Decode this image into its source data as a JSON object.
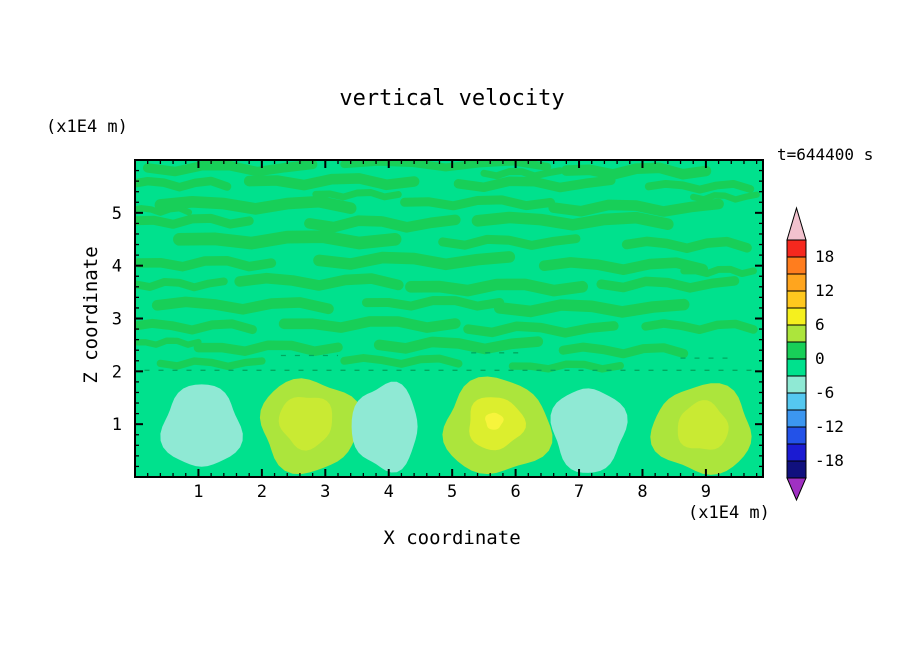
{
  "title": "vertical velocity",
  "time_label": "t=644400 s",
  "axes": {
    "x_label": "X coordinate",
    "x_unit": "(x1E4 m)",
    "y_label": "Z coordinate",
    "y_unit": "(x1E4 m)",
    "x_ticks": [
      1,
      2,
      3,
      4,
      5,
      6,
      7,
      8,
      9
    ],
    "y_ticks": [
      1,
      2,
      3,
      4,
      5
    ],
    "x_range": [
      0,
      9.9
    ],
    "y_range": [
      0,
      6
    ]
  },
  "colorbar": {
    "tick_labels": [
      "18",
      "12",
      "6",
      "0",
      "-6",
      "-12",
      "-18"
    ],
    "top_arrow_color": "#F2C2CE",
    "bottom_arrow_color": "#A030C2",
    "bands_top_to_bottom": [
      "#F5281E",
      "#FF7D1E",
      "#FFA51E",
      "#FFC81E",
      "#F5F01E",
      "#ACE53C",
      "#18CF58",
      "#00E18D",
      "#8FE9D4",
      "#55C8F0",
      "#3C96F0",
      "#2352E8",
      "#1B1BD2",
      "#10107E"
    ]
  },
  "chart_data": {
    "type": "heatmap",
    "subtype": "filled-contour",
    "title": "vertical velocity",
    "xlabel": "X coordinate (x1E4 m)",
    "ylabel": "Z coordinate (x1E4 m)",
    "time_annotation": "t=644400 s",
    "x_range": [
      0,
      9.9
    ],
    "z_range": [
      0,
      6
    ],
    "contour_interval": 3,
    "value_range": [
      -21,
      21
    ],
    "background_band": {
      "value_range": [
        -3,
        0
      ],
      "color": "#00E18D"
    },
    "streak_band": {
      "value_range": [
        0,
        3
      ],
      "color": "#18CF58"
    },
    "zero_contour_dashes": [
      {
        "z": 2.02,
        "x1": 0.15,
        "x2": 9.75
      },
      {
        "z": 2.3,
        "x1": 2.3,
        "x2": 3.2
      },
      {
        "z": 2.35,
        "x1": 5.3,
        "x2": 6.15
      },
      {
        "z": 2.25,
        "x1": 8.6,
        "x2": 9.45
      }
    ],
    "streaks": [
      [
        1.5,
        5.85,
        2.6,
        0.18
      ],
      [
        4.9,
        5.92,
        3.2,
        0.15
      ],
      [
        7.9,
        5.8,
        2.2,
        0.2
      ],
      [
        6.1,
        5.75,
        1.2,
        0.13
      ],
      [
        0.7,
        5.55,
        1.5,
        0.16
      ],
      [
        3.1,
        5.6,
        2.6,
        0.2
      ],
      [
        6.3,
        5.55,
        2.4,
        0.18
      ],
      [
        8.9,
        5.5,
        1.6,
        0.15
      ],
      [
        3.5,
        5.35,
        1.3,
        0.13
      ],
      [
        9.3,
        5.3,
        1.0,
        0.12
      ],
      [
        1.9,
        5.15,
        3.0,
        0.22
      ],
      [
        5.4,
        5.2,
        2.3,
        0.17
      ],
      [
        7.9,
        5.1,
        2.6,
        0.2
      ],
      [
        0.4,
        5.05,
        0.9,
        0.12
      ],
      [
        0.9,
        4.85,
        1.8,
        0.17
      ],
      [
        3.9,
        4.8,
        2.3,
        0.2
      ],
      [
        6.9,
        4.85,
        3.0,
        0.22
      ],
      [
        2.4,
        4.5,
        3.4,
        0.24
      ],
      [
        5.9,
        4.45,
        2.1,
        0.17
      ],
      [
        8.7,
        4.4,
        1.9,
        0.18
      ],
      [
        1.1,
        4.05,
        2.1,
        0.18
      ],
      [
        4.4,
        4.1,
        3.0,
        0.22
      ],
      [
        7.7,
        4.0,
        2.5,
        0.2
      ],
      [
        9.2,
        3.9,
        1.1,
        0.13
      ],
      [
        0.7,
        3.65,
        1.4,
        0.15
      ],
      [
        2.9,
        3.7,
        2.5,
        0.2
      ],
      [
        5.7,
        3.6,
        2.7,
        0.22
      ],
      [
        8.4,
        3.65,
        2.1,
        0.18
      ],
      [
        1.7,
        3.25,
        2.7,
        0.2
      ],
      [
        4.7,
        3.3,
        2.1,
        0.17
      ],
      [
        7.2,
        3.2,
        2.9,
        0.22
      ],
      [
        0.9,
        2.85,
        1.9,
        0.17
      ],
      [
        3.7,
        2.9,
        2.7,
        0.2
      ],
      [
        6.4,
        2.8,
        2.3,
        0.18
      ],
      [
        8.9,
        2.85,
        1.7,
        0.16
      ],
      [
        2.1,
        2.45,
        2.2,
        0.18
      ],
      [
        5.1,
        2.5,
        2.5,
        0.2
      ],
      [
        7.7,
        2.4,
        1.9,
        0.17
      ],
      [
        0.5,
        2.55,
        1.0,
        0.12
      ],
      [
        1.2,
        2.15,
        1.6,
        0.14
      ],
      [
        4.2,
        2.2,
        1.8,
        0.15
      ],
      [
        6.8,
        2.1,
        1.7,
        0.14
      ]
    ],
    "cells_bottom_row": [
      {
        "w_sign": "negative",
        "value_band": [
          -6,
          -3
        ],
        "color": "#8FE9D4",
        "cx": 1.05,
        "cz": 0.95,
        "rx": 0.62,
        "rz": 0.78
      },
      {
        "w_sign": "positive",
        "value_band": [
          3,
          6
        ],
        "color": "#ACE53C",
        "cx": 2.75,
        "cz": 0.98,
        "rx": 0.78,
        "rz": 0.88,
        "inner": [
          {
            "value_band": [
              6,
              9
            ],
            "color": "#C9EA33",
            "cx": 2.7,
            "cz": 1.05,
            "rx": 0.42,
            "rz": 0.5
          }
        ]
      },
      {
        "w_sign": "negative",
        "value_band": [
          -6,
          -3
        ],
        "color": "#8FE9D4",
        "cx": 3.95,
        "cz": 0.95,
        "rx": 0.52,
        "rz": 0.82
      },
      {
        "w_sign": "positive",
        "value_band": [
          3,
          6
        ],
        "color": "#ACE53C",
        "cx": 5.7,
        "cz": 0.95,
        "rx": 0.84,
        "rz": 0.9,
        "inner": [
          {
            "value_band": [
              6,
              9
            ],
            "color": "#DCEE2E",
            "cx": 5.68,
            "cz": 1.02,
            "rx": 0.44,
            "rz": 0.5
          },
          {
            "value_band": [
              9,
              12
            ],
            "color": "#F7F43C",
            "cx": 5.66,
            "cz": 1.06,
            "rx": 0.14,
            "rz": 0.16
          }
        ]
      },
      {
        "w_sign": "negative",
        "value_band": [
          -6,
          -3
        ],
        "color": "#8FE9D4",
        "cx": 7.15,
        "cz": 0.9,
        "rx": 0.58,
        "rz": 0.8
      },
      {
        "w_sign": "positive",
        "value_band": [
          3,
          6
        ],
        "color": "#ACE53C",
        "cx": 8.95,
        "cz": 0.9,
        "rx": 0.78,
        "rz": 0.84,
        "inner": [
          {
            "value_band": [
              6,
              9
            ],
            "color": "#C9EA33",
            "cx": 8.95,
            "cz": 0.95,
            "rx": 0.4,
            "rz": 0.46
          }
        ]
      }
    ]
  }
}
